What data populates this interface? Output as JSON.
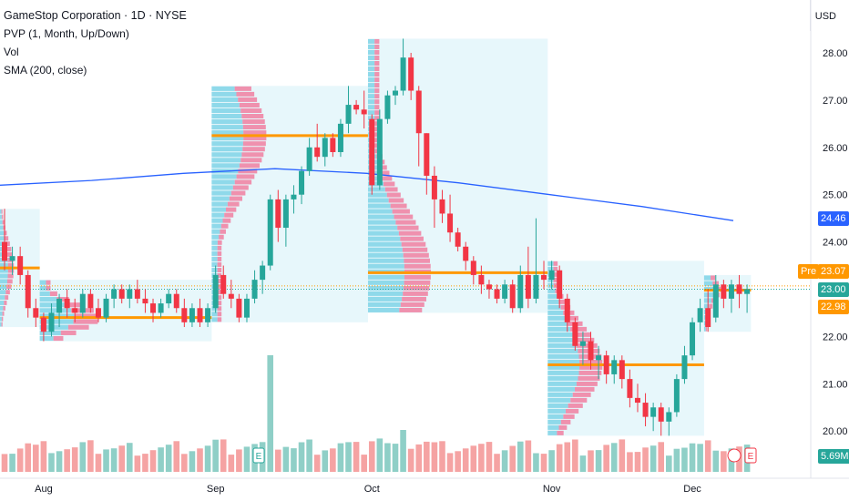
{
  "header": {
    "title": "GameStop Corporation · 1D · NYSE",
    "ind1": "PVP (1, Month, Up/Down)",
    "ind2": "Vol",
    "ind3": "SMA (200, close)"
  },
  "currency_label": "USD",
  "price_tags": {
    "sma": "24.46",
    "pre_label": "Pre",
    "pre": "23.07",
    "last": "23.00",
    "poc": "22.98",
    "volume": "5.69M"
  },
  "earnings_marker": "E",
  "colors": {
    "up": "#26a69a",
    "down": "#f23645",
    "up_vol": "#8fcfc7",
    "down_vol": "#f5a3a3",
    "sma": "#2962ff",
    "poc": "#ff9800",
    "profile_box": "#dff4fa"
  },
  "chart_data": {
    "type": "candlestick",
    "title": "GameStop Corporation · 1D · NYSE",
    "y_axis": {
      "ticks": [
        "28.00",
        "27.00",
        "26.00",
        "25.00",
        "24.00",
        "23.00",
        "22.00",
        "21.00",
        "20.00"
      ],
      "range": [
        19.6,
        28.4
      ]
    },
    "x_axis": {
      "labels": [
        "Aug",
        "Sep",
        "Oct",
        "Nov",
        "Dec"
      ]
    },
    "month_poc": [
      {
        "month": "Jul",
        "value": 23.45
      },
      {
        "month": "Aug",
        "value": 22.4
      },
      {
        "month": "Sep",
        "value": 26.25
      },
      {
        "month": "Oct",
        "value": 23.35
      },
      {
        "month": "Nov",
        "value": 21.4
      },
      {
        "month": "Dec",
        "value": 22.98
      }
    ],
    "sma_200": [
      25.2,
      25.3,
      25.45,
      25.55,
      25.45,
      25.25,
      25.0,
      24.75,
      24.45
    ],
    "candles": [
      {
        "d": "Jul-25",
        "o": 24.0,
        "h": 24.7,
        "l": 23.4,
        "c": 23.6
      },
      {
        "d": "Jul-26",
        "o": 23.6,
        "h": 23.9,
        "l": 23.3,
        "c": 23.7
      },
      {
        "d": "Jul-29",
        "o": 23.7,
        "h": 23.9,
        "l": 23.1,
        "c": 23.3
      },
      {
        "d": "Jul-30",
        "o": 23.3,
        "h": 23.4,
        "l": 22.4,
        "c": 22.6
      },
      {
        "d": "Jul-31",
        "o": 22.6,
        "h": 22.8,
        "l": 22.2,
        "c": 22.4
      },
      {
        "d": "Aug-01",
        "o": 22.4,
        "h": 22.5,
        "l": 21.9,
        "c": 22.1
      },
      {
        "d": "Aug-02",
        "o": 22.1,
        "h": 22.7,
        "l": 22.0,
        "c": 22.5
      },
      {
        "d": "Aug-05",
        "o": 22.5,
        "h": 22.9,
        "l": 22.2,
        "c": 22.8
      },
      {
        "d": "Aug-06",
        "o": 22.8,
        "h": 23.0,
        "l": 22.4,
        "c": 22.6
      },
      {
        "d": "Aug-07",
        "o": 22.6,
        "h": 22.8,
        "l": 22.3,
        "c": 22.5
      },
      {
        "d": "Aug-08",
        "o": 22.5,
        "h": 23.0,
        "l": 22.4,
        "c": 22.9
      },
      {
        "d": "Aug-09",
        "o": 22.9,
        "h": 23.0,
        "l": 22.5,
        "c": 22.6
      },
      {
        "d": "Aug-12",
        "o": 22.6,
        "h": 22.8,
        "l": 22.3,
        "c": 22.4
      },
      {
        "d": "Aug-13",
        "o": 22.4,
        "h": 22.9,
        "l": 22.3,
        "c": 22.8
      },
      {
        "d": "Aug-14",
        "o": 22.8,
        "h": 23.1,
        "l": 22.6,
        "c": 23.0
      },
      {
        "d": "Aug-15",
        "o": 23.0,
        "h": 23.1,
        "l": 22.7,
        "c": 22.8
      },
      {
        "d": "Aug-16",
        "o": 22.8,
        "h": 23.1,
        "l": 22.6,
        "c": 23.0
      },
      {
        "d": "Aug-19",
        "o": 23.0,
        "h": 23.2,
        "l": 22.7,
        "c": 22.8
      },
      {
        "d": "Aug-20",
        "o": 22.8,
        "h": 23.0,
        "l": 22.5,
        "c": 22.7
      },
      {
        "d": "Aug-21",
        "o": 22.7,
        "h": 22.8,
        "l": 22.3,
        "c": 22.5
      },
      {
        "d": "Aug-22",
        "o": 22.5,
        "h": 22.8,
        "l": 22.4,
        "c": 22.7
      },
      {
        "d": "Aug-23",
        "o": 22.7,
        "h": 23.0,
        "l": 22.6,
        "c": 22.9
      },
      {
        "d": "Aug-26",
        "o": 22.9,
        "h": 23.0,
        "l": 22.5,
        "c": 22.6
      },
      {
        "d": "Aug-27",
        "o": 22.6,
        "h": 22.8,
        "l": 22.2,
        "c": 22.3
      },
      {
        "d": "Aug-28",
        "o": 22.3,
        "h": 22.7,
        "l": 22.2,
        "c": 22.6
      },
      {
        "d": "Aug-29",
        "o": 22.6,
        "h": 22.8,
        "l": 22.2,
        "c": 22.3
      },
      {
        "d": "Aug-30",
        "o": 22.3,
        "h": 22.7,
        "l": 22.2,
        "c": 22.6
      },
      {
        "d": "Sep-03",
        "o": 22.6,
        "h": 23.5,
        "l": 22.5,
        "c": 23.3
      },
      {
        "d": "Sep-04",
        "o": 23.3,
        "h": 23.5,
        "l": 22.8,
        "c": 22.9
      },
      {
        "d": "Sep-05",
        "o": 22.9,
        "h": 23.2,
        "l": 22.6,
        "c": 22.8
      },
      {
        "d": "Sep-06",
        "o": 22.8,
        "h": 22.9,
        "l": 22.3,
        "c": 22.4
      },
      {
        "d": "Sep-09",
        "o": 22.4,
        "h": 22.9,
        "l": 22.3,
        "c": 22.8
      },
      {
        "d": "Sep-10",
        "o": 22.8,
        "h": 23.4,
        "l": 22.7,
        "c": 23.2
      },
      {
        "d": "Sep-11",
        "o": 23.2,
        "h": 23.6,
        "l": 22.9,
        "c": 23.5
      },
      {
        "d": "Sep-12",
        "o": 23.5,
        "h": 25.0,
        "l": 23.4,
        "c": 24.9
      },
      {
        "d": "Sep-13",
        "o": 24.9,
        "h": 25.1,
        "l": 24.0,
        "c": 24.3
      },
      {
        "d": "Sep-16",
        "o": 24.3,
        "h": 25.0,
        "l": 23.9,
        "c": 24.9
      },
      {
        "d": "Sep-17",
        "o": 24.9,
        "h": 25.2,
        "l": 24.6,
        "c": 25.0
      },
      {
        "d": "Sep-18",
        "o": 25.0,
        "h": 25.6,
        "l": 24.8,
        "c": 25.5
      },
      {
        "d": "Sep-19",
        "o": 25.5,
        "h": 26.2,
        "l": 25.4,
        "c": 26.0
      },
      {
        "d": "Sep-20",
        "o": 26.0,
        "h": 26.5,
        "l": 25.7,
        "c": 25.8
      },
      {
        "d": "Sep-23",
        "o": 25.8,
        "h": 26.3,
        "l": 25.6,
        "c": 26.2
      },
      {
        "d": "Sep-24",
        "o": 26.2,
        "h": 26.3,
        "l": 25.8,
        "c": 25.9
      },
      {
        "d": "Sep-25",
        "o": 25.9,
        "h": 26.6,
        "l": 25.8,
        "c": 26.5
      },
      {
        "d": "Sep-26",
        "o": 26.5,
        "h": 27.3,
        "l": 26.3,
        "c": 26.9
      },
      {
        "d": "Sep-27",
        "o": 26.9,
        "h": 27.0,
        "l": 26.7,
        "c": 26.8
      },
      {
        "d": "Sep-30",
        "o": 26.8,
        "h": 27.2,
        "l": 26.4,
        "c": 26.7
      },
      {
        "d": "Oct-01",
        "o": 26.6,
        "h": 26.7,
        "l": 25.0,
        "c": 25.2
      },
      {
        "d": "Oct-02",
        "o": 25.2,
        "h": 26.8,
        "l": 25.1,
        "c": 26.6
      },
      {
        "d": "Oct-03",
        "o": 26.6,
        "h": 27.2,
        "l": 26.5,
        "c": 27.1
      },
      {
        "d": "Oct-04",
        "o": 27.1,
        "h": 27.3,
        "l": 26.9,
        "c": 27.2
      },
      {
        "d": "Oct-07",
        "o": 27.2,
        "h": 28.3,
        "l": 27.1,
        "c": 27.9
      },
      {
        "d": "Oct-08",
        "o": 27.9,
        "h": 28.0,
        "l": 27.0,
        "c": 27.2
      },
      {
        "d": "Oct-09",
        "o": 27.2,
        "h": 27.3,
        "l": 25.6,
        "c": 26.3
      },
      {
        "d": "Oct-10",
        "o": 26.3,
        "h": 26.3,
        "l": 25.0,
        "c": 25.4
      },
      {
        "d": "Oct-11",
        "o": 25.4,
        "h": 25.6,
        "l": 24.3,
        "c": 24.9
      },
      {
        "d": "Oct-14",
        "o": 24.9,
        "h": 25.1,
        "l": 24.4,
        "c": 24.6
      },
      {
        "d": "Oct-15",
        "o": 24.6,
        "h": 25.0,
        "l": 24.0,
        "c": 24.2
      },
      {
        "d": "Oct-16",
        "o": 24.2,
        "h": 24.3,
        "l": 23.8,
        "c": 23.9
      },
      {
        "d": "Oct-17",
        "o": 23.9,
        "h": 24.0,
        "l": 23.4,
        "c": 23.6
      },
      {
        "d": "Oct-18",
        "o": 23.6,
        "h": 23.7,
        "l": 23.1,
        "c": 23.3
      },
      {
        "d": "Oct-21",
        "o": 23.3,
        "h": 23.5,
        "l": 22.9,
        "c": 23.1
      },
      {
        "d": "Oct-22",
        "o": 23.1,
        "h": 23.2,
        "l": 22.8,
        "c": 23.0
      },
      {
        "d": "Oct-23",
        "o": 23.0,
        "h": 23.1,
        "l": 22.7,
        "c": 22.8
      },
      {
        "d": "Oct-24",
        "o": 22.8,
        "h": 23.2,
        "l": 22.7,
        "c": 23.1
      },
      {
        "d": "Oct-25",
        "o": 23.1,
        "h": 23.2,
        "l": 22.5,
        "c": 22.6
      },
      {
        "d": "Oct-28",
        "o": 22.6,
        "h": 23.5,
        "l": 22.5,
        "c": 23.3
      },
      {
        "d": "Oct-29",
        "o": 23.3,
        "h": 23.9,
        "l": 22.6,
        "c": 22.8
      },
      {
        "d": "Oct-30",
        "o": 22.8,
        "h": 24.5,
        "l": 22.7,
        "c": 23.3
      },
      {
        "d": "Oct-31",
        "o": 23.3,
        "h": 23.6,
        "l": 23.0,
        "c": 23.2
      },
      {
        "d": "Nov-01",
        "o": 23.2,
        "h": 23.6,
        "l": 23.0,
        "c": 23.4
      },
      {
        "d": "Nov-04",
        "o": 23.4,
        "h": 23.5,
        "l": 22.6,
        "c": 22.8
      },
      {
        "d": "Nov-05",
        "o": 22.8,
        "h": 22.9,
        "l": 22.1,
        "c": 22.3
      },
      {
        "d": "Nov-06",
        "o": 22.3,
        "h": 22.4,
        "l": 21.7,
        "c": 21.8
      },
      {
        "d": "Nov-07",
        "o": 21.8,
        "h": 22.1,
        "l": 21.4,
        "c": 21.9
      },
      {
        "d": "Nov-08",
        "o": 21.9,
        "h": 22.1,
        "l": 21.3,
        "c": 21.5
      },
      {
        "d": "Nov-11",
        "o": 21.5,
        "h": 21.8,
        "l": 21.1,
        "c": 21.6
      },
      {
        "d": "Nov-12",
        "o": 21.6,
        "h": 21.7,
        "l": 21.0,
        "c": 21.2
      },
      {
        "d": "Nov-13",
        "o": 21.2,
        "h": 21.6,
        "l": 21.0,
        "c": 21.5
      },
      {
        "d": "Nov-14",
        "o": 21.5,
        "h": 21.6,
        "l": 20.9,
        "c": 21.1
      },
      {
        "d": "Nov-15",
        "o": 21.1,
        "h": 21.3,
        "l": 20.5,
        "c": 20.7
      },
      {
        "d": "Nov-18",
        "o": 20.7,
        "h": 21.0,
        "l": 20.4,
        "c": 20.6
      },
      {
        "d": "Nov-19",
        "o": 20.6,
        "h": 20.8,
        "l": 20.1,
        "c": 20.3
      },
      {
        "d": "Nov-20",
        "o": 20.3,
        "h": 20.6,
        "l": 20.0,
        "c": 20.5
      },
      {
        "d": "Nov-21",
        "o": 20.5,
        "h": 20.6,
        "l": 19.9,
        "c": 20.2
      },
      {
        "d": "Nov-22",
        "o": 20.2,
        "h": 20.5,
        "l": 19.9,
        "c": 20.4
      },
      {
        "d": "Nov-25",
        "o": 20.4,
        "h": 21.2,
        "l": 20.3,
        "c": 21.1
      },
      {
        "d": "Nov-26",
        "o": 21.1,
        "h": 21.8,
        "l": 21.0,
        "c": 21.6
      },
      {
        "d": "Nov-27",
        "o": 21.6,
        "h": 22.4,
        "l": 21.5,
        "c": 22.3
      },
      {
        "d": "Nov-29",
        "o": 22.3,
        "h": 22.8,
        "l": 22.1,
        "c": 22.6
      },
      {
        "d": "Dec-02",
        "o": 22.6,
        "h": 23.0,
        "l": 22.1,
        "c": 22.2
      },
      {
        "d": "Dec-03",
        "o": 22.4,
        "h": 23.3,
        "l": 22.3,
        "c": 23.1
      },
      {
        "d": "Dec-04",
        "o": 23.1,
        "h": 23.2,
        "l": 22.6,
        "c": 22.8
      },
      {
        "d": "Dec-05",
        "o": 22.8,
        "h": 23.2,
        "l": 22.5,
        "c": 23.1
      },
      {
        "d": "Dec-06",
        "o": 23.1,
        "h": 23.3,
        "l": 22.6,
        "c": 22.9
      },
      {
        "d": "Dec-09",
        "o": 22.9,
        "h": 23.1,
        "l": 22.5,
        "c": 23.0
      }
    ]
  }
}
